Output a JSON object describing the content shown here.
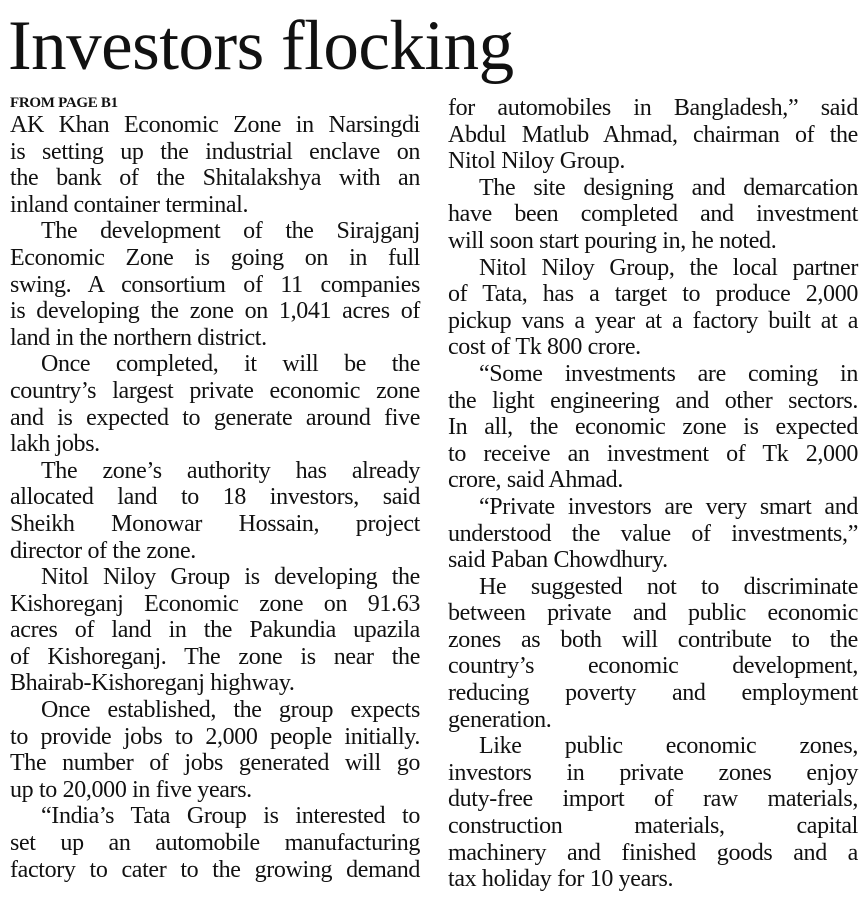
{
  "headline": "Investors flocking",
  "kicker": "FROM PAGE B1",
  "left_column": [
    [
      "AK Khan Economic Zone in Narsingdi",
      "is setting up the industrial enclave on",
      "the bank of the Shitalakshya with an",
      "inland container terminal."
    ],
    [
      "The development of the Sirajganj",
      "Economic Zone is going on in full",
      "swing. A consortium of 11 companies",
      "is developing the zone on 1,041 acres of",
      "land in the northern district."
    ],
    [
      "Once completed, it will be the",
      "country’s largest private economic zone",
      "and is expected to generate around five",
      "lakh jobs."
    ],
    [
      "The zone’s authority has already",
      "allocated land to 18 investors, said",
      "Sheikh Monowar Hossain, project",
      "director of the zone."
    ],
    [
      "Nitol Niloy Group is developing the",
      "Kishoreganj Economic zone on 91.63",
      "acres of land in the Pakundia upazila",
      "of Kishoreganj. The zone is near the",
      "Bhairab-Kishoreganj highway."
    ],
    [
      "Once established, the group expects",
      "to provide jobs to 2,000 people initially.",
      "The number of jobs generated will go",
      "up to 20,000 in five years."
    ],
    [
      "“India’s Tata Group is interested to",
      "set up an automobile manufacturing",
      "factory to cater to the growing demand"
    ]
  ],
  "right_column": [
    [
      "for automobiles in Bangladesh,” said",
      "Abdul Matlub Ahmad, chairman of the",
      "Nitol Niloy Group."
    ],
    [
      "The site designing and demarcation",
      "have been completed and investment",
      "will soon start pouring in, he noted."
    ],
    [
      "Nitol Niloy Group, the local partner",
      "of Tata, has a target to produce 2,000",
      "pickup vans a year at a factory built at a",
      "cost of Tk 800 crore."
    ],
    [
      "“Some investments are coming in",
      "the light engineering and other sectors.",
      "In all, the economic zone is expected",
      "to receive an investment of Tk 2,000",
      "crore, said Ahmad."
    ],
    [
      "“Private investors are very smart and",
      "understood the value of investments,”",
      "said Paban Chowdhury."
    ],
    [
      "He suggested not to discriminate",
      "between private and public economic",
      "zones as both will contribute to the",
      "country’s economic development,",
      "reducing poverty and employment",
      "generation."
    ],
    [
      "Like public economic zones,",
      "investors in private zones enjoy",
      "duty-free import of raw materials,",
      "construction materials, capital",
      "machinery and finished goods and a",
      "tax holiday for 10 years."
    ]
  ]
}
